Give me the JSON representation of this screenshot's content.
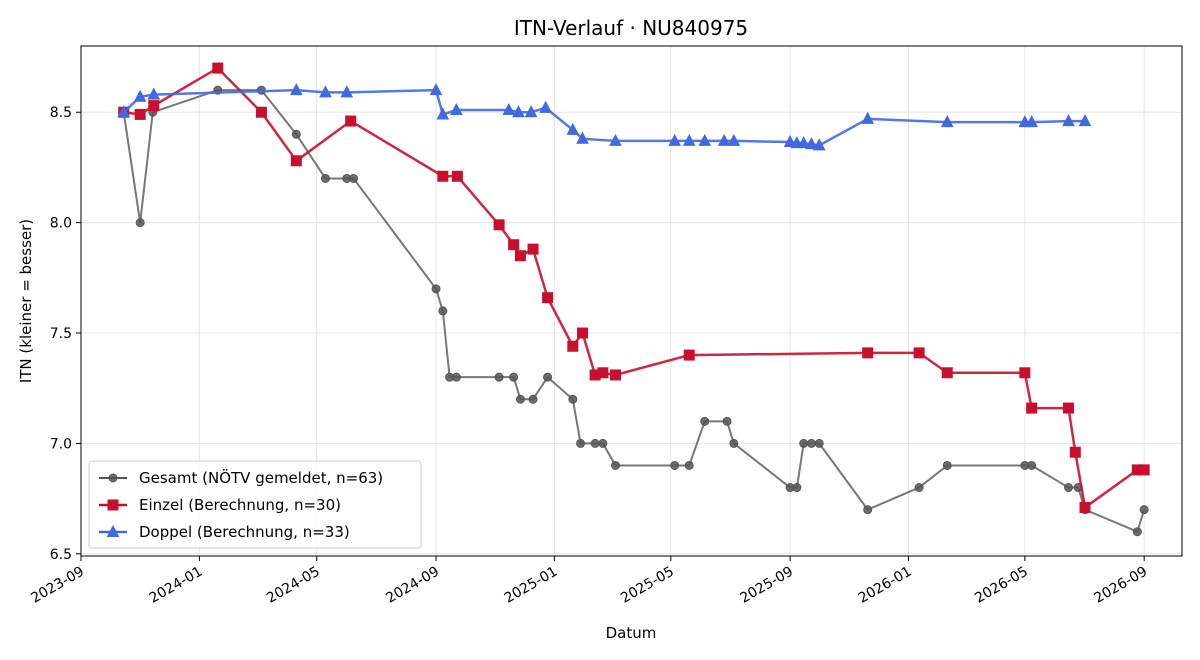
{
  "chart_data": {
    "type": "line",
    "title": "ITN-Verlauf · NU840975",
    "xlabel": "Datum",
    "ylabel": "ITN  (kleiner = besser)",
    "xlim": [
      "2023-09-01",
      "2026-10-10"
    ],
    "ylim": [
      6.49,
      8.8
    ],
    "grid": true,
    "legend_position": "lower-left",
    "x_ticks": [
      "2023-09",
      "2024-01",
      "2024-05",
      "2024-09",
      "2025-01",
      "2025-05",
      "2025-09",
      "2026-01",
      "2026-05",
      "2026-09"
    ],
    "y_ticks": [
      "6.5",
      "7.0",
      "7.5",
      "8.0",
      "8.5"
    ],
    "series": [
      {
        "name": "Gesamt (NÖTV gemeldet, n=63)",
        "color": "#555555",
        "marker": "circle",
        "x": [
          "2023-10-15",
          "2023-11-01",
          "2023-11-14",
          "2024-01-20",
          "2024-03-05",
          "2024-04-10",
          "2024-05-10",
          "2024-06-01",
          "2024-06-08",
          "2024-09-01",
          "2024-09-08",
          "2024-09-15",
          "2024-09-22",
          "2024-11-05",
          "2024-11-20",
          "2024-11-27",
          "2024-12-10",
          "2024-12-25",
          "2025-01-20",
          "2025-01-28",
          "2025-02-12",
          "2025-02-20",
          "2025-03-05",
          "2025-05-05",
          "2025-05-20",
          "2025-06-05",
          "2025-06-28",
          "2025-07-05",
          "2025-09-01",
          "2025-09-08",
          "2025-09-15",
          "2025-09-23",
          "2025-10-01",
          "2025-11-20",
          "2026-01-12",
          "2026-02-10",
          "2026-05-01",
          "2026-05-08",
          "2026-06-15",
          "2026-06-25",
          "2026-07-02",
          "2026-08-25",
          "2026-09-01"
        ],
        "values": [
          8.5,
          8.0,
          8.5,
          8.6,
          8.6,
          8.4,
          8.2,
          8.2,
          8.2,
          7.7,
          7.6,
          7.3,
          7.3,
          7.3,
          7.3,
          7.2,
          7.2,
          7.3,
          7.2,
          7.0,
          7.0,
          7.0,
          6.9,
          6.9,
          6.9,
          7.1,
          7.1,
          7.0,
          6.8,
          6.8,
          7.0,
          7.0,
          7.0,
          6.7,
          6.8,
          6.9,
          6.9,
          6.9,
          6.8,
          6.8,
          6.7,
          6.6,
          6.7
        ]
      },
      {
        "name": "Einzel (Berechnung, n=30)",
        "color": "#c8102e",
        "marker": "square",
        "x": [
          "2023-10-15",
          "2023-11-01",
          "2023-11-15",
          "2024-01-20",
          "2024-03-05",
          "2024-04-10",
          "2024-06-05",
          "2024-09-08",
          "2024-09-23",
          "2024-11-05",
          "2024-11-20",
          "2024-11-27",
          "2024-12-10",
          "2024-12-25",
          "2025-01-20",
          "2025-01-30",
          "2025-02-12",
          "2025-02-20",
          "2025-03-05",
          "2025-05-20",
          "2025-11-20",
          "2026-01-12",
          "2026-02-10",
          "2026-05-01",
          "2026-05-08",
          "2026-06-15",
          "2026-06-22",
          "2026-07-02",
          "2026-08-25",
          "2026-09-01"
        ],
        "values": [
          8.5,
          8.49,
          8.53,
          8.7,
          8.5,
          8.28,
          8.46,
          8.21,
          8.21,
          7.99,
          7.9,
          7.85,
          7.88,
          7.66,
          7.44,
          7.5,
          7.31,
          7.32,
          7.31,
          7.4,
          7.41,
          7.41,
          7.32,
          7.32,
          7.16,
          7.16,
          6.96,
          6.71,
          6.88,
          6.88
        ]
      },
      {
        "name": "Doppel (Berechnung, n=33)",
        "color": "#4169e1",
        "marker": "triangle",
        "x": [
          "2023-10-15",
          "2023-11-01",
          "2023-11-15",
          "2024-04-10",
          "2024-05-10",
          "2024-06-01",
          "2024-09-01",
          "2024-09-08",
          "2024-09-22",
          "2024-11-15",
          "2024-11-25",
          "2024-12-08",
          "2024-12-23",
          "2025-01-20",
          "2025-01-30",
          "2025-03-05",
          "2025-05-05",
          "2025-05-20",
          "2025-06-05",
          "2025-06-25",
          "2025-07-05",
          "2025-09-01",
          "2025-09-08",
          "2025-09-15",
          "2025-09-23",
          "2025-10-01",
          "2025-11-20",
          "2026-02-10",
          "2026-05-01",
          "2026-05-08",
          "2026-06-15",
          "2026-07-02"
        ],
        "values": [
          8.5,
          8.57,
          8.58,
          8.6,
          8.59,
          8.59,
          8.6,
          8.49,
          8.51,
          8.51,
          8.5,
          8.5,
          8.52,
          8.42,
          8.38,
          8.37,
          8.37,
          8.37,
          8.37,
          8.37,
          8.37,
          8.365,
          8.36,
          8.36,
          8.355,
          8.35,
          8.47,
          8.455,
          8.455,
          8.455,
          8.46,
          8.46
        ]
      }
    ]
  }
}
